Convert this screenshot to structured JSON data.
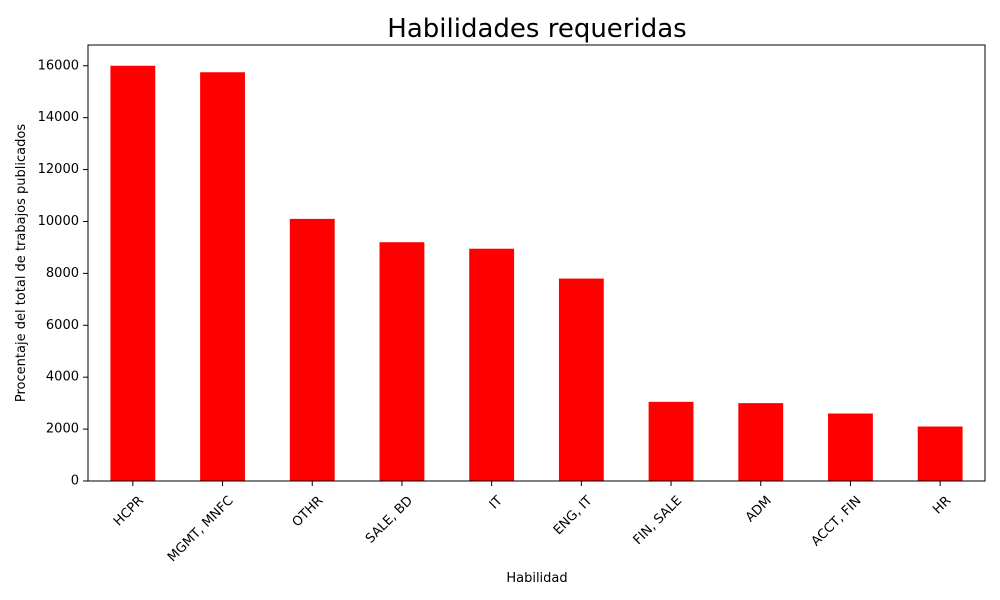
{
  "chart_data": {
    "type": "bar",
    "title": "Habilidades requeridas",
    "xlabel": "Habilidad",
    "ylabel": "Procentaje del total de trabajos publicados",
    "categories": [
      "HCPR",
      "MGMT, MNFC",
      "OTHR",
      "SALE, BD",
      "IT",
      "ENG, IT",
      "FIN, SALE",
      "ADM",
      "ACCT, FIN",
      "HR"
    ],
    "values": [
      16000,
      15750,
      10100,
      9200,
      8950,
      7800,
      3050,
      3000,
      2600,
      2100
    ],
    "ylim": [
      0,
      16800
    ],
    "yticks": [
      0,
      2000,
      4000,
      6000,
      8000,
      10000,
      12000,
      14000,
      16000
    ],
    "grid": false,
    "legend": "none",
    "bar_color": "#ff0000"
  }
}
